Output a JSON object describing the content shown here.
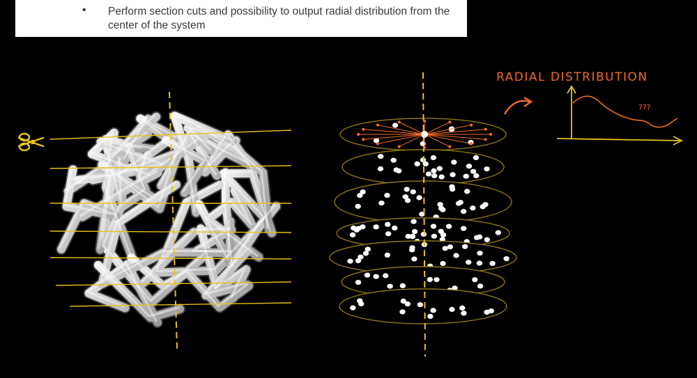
{
  "note": {
    "bullet": "•",
    "text": "Perform section cuts and possibility to output radial distribution from the center of the system"
  },
  "annotations": {
    "radial_title": "RADIAL DISTRIBUTION",
    "question": "???"
  },
  "colors": {
    "background": "#000000",
    "section_lines": "#e8c21e",
    "annotation": "#f06a2a",
    "tubes": "#d8d8d8",
    "disc_outline": "#8a7418"
  },
  "icons": {
    "scissors": "scissors-icon"
  }
}
